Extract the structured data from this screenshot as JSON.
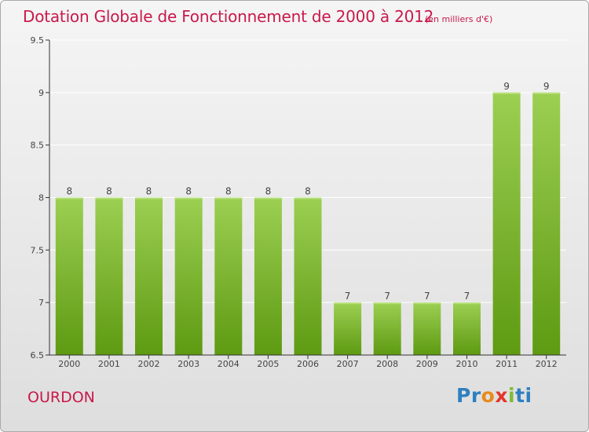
{
  "header": {
    "title": "Dotation Globale de Fonctionnement de 2000 à 2012",
    "unit": "(en milliers d'€)"
  },
  "footer": {
    "commune": "OURDON",
    "logo_parts": [
      "Pr",
      "o",
      "x",
      "i",
      "ti"
    ]
  },
  "colors": {
    "title": "#c8194b",
    "bar_top": "#9ccf52",
    "bar_bottom": "#5e9a12",
    "axis": "#333333",
    "grid": "#ffffff"
  },
  "chart_data": {
    "type": "bar",
    "title": "Dotation Globale de Fonctionnement de 2000 à 2012",
    "subtitle": "(en milliers d'€)",
    "categories": [
      "2000",
      "2001",
      "2002",
      "2003",
      "2004",
      "2005",
      "2006",
      "2007",
      "2008",
      "2009",
      "2010",
      "2011",
      "2012"
    ],
    "values": [
      8,
      8,
      8,
      8,
      8,
      8,
      8,
      7,
      7,
      7,
      7,
      9,
      9
    ],
    "data_labels": [
      "8",
      "8",
      "8",
      "8",
      "8",
      "8",
      "8",
      "7",
      "7",
      "7",
      "7",
      "9",
      "9"
    ],
    "ylim": [
      6.5,
      9.5
    ],
    "yticks": [
      6.5,
      7,
      7.5,
      8,
      8.5,
      9,
      9.5
    ],
    "ytick_labels": [
      "6.5",
      "7",
      "7.5",
      "8",
      "8.5",
      "9",
      "9.5"
    ],
    "grid": true,
    "legend": "none"
  }
}
